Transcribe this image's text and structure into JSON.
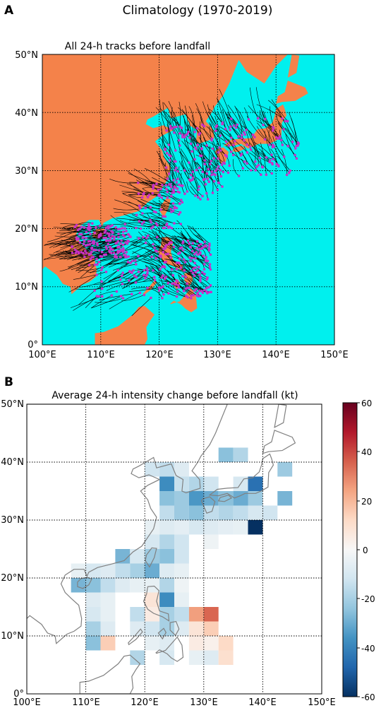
{
  "page": {
    "suptitle": "Climatology (1970-2019)"
  },
  "colors": {
    "land": "#f4824a",
    "sea": "#00f0ee",
    "track": "#000000",
    "landfall_point": "#c830c8",
    "coastline": "#808080",
    "cmap": [
      "#053061",
      "#2166ac",
      "#4393c3",
      "#92c5de",
      "#d1e5f0",
      "#f7f7f7",
      "#fddbc7",
      "#f4a582",
      "#d6604d",
      "#b2182b",
      "#67001f"
    ]
  },
  "chart_data": [
    {
      "panel_label": "A",
      "type": "scatter",
      "title": "All 24-h tracks before landfall",
      "xlabel": "",
      "ylabel": "",
      "xlim": [
        100,
        150
      ],
      "ylim": [
        0,
        50
      ],
      "x_ticks": [
        "100°E",
        "110°E",
        "120°E",
        "130°E",
        "140°E",
        "150°E"
      ],
      "y_ticks": [
        "0°",
        "10°N",
        "20°N",
        "30°N",
        "40°N",
        "50°N"
      ],
      "grid": true,
      "landfall_clusters": [
        {
          "lon_range": [
            105,
            115
          ],
          "lat_range": [
            15,
            21
          ],
          "count": 140,
          "dir": [
            -1.2,
            -0.2
          ]
        },
        {
          "lon_range": [
            108,
            120
          ],
          "lat_range": [
            8,
            19
          ],
          "count": 90,
          "dir": [
            -1.0,
            -0.4
          ]
        },
        {
          "lon_range": [
            116,
            124
          ],
          "lat_range": [
            20,
            28
          ],
          "count": 80,
          "dir": [
            -1.0,
            0.3
          ]
        },
        {
          "lon_range": [
            120,
            129
          ],
          "lat_range": [
            8,
            18
          ],
          "count": 150,
          "dir": [
            -0.9,
            0.6
          ]
        },
        {
          "lon_range": [
            121,
            131
          ],
          "lat_range": [
            25,
            38
          ],
          "count": 110,
          "dir": [
            -0.4,
            1.0
          ]
        },
        {
          "lon_range": [
            129,
            144
          ],
          "lat_range": [
            29,
            39
          ],
          "count": 110,
          "dir": [
            -0.6,
            0.9
          ]
        }
      ]
    },
    {
      "panel_label": "B",
      "type": "heatmap",
      "title": "Average 24-h intensity change before landfall (kt)",
      "xlabel": "",
      "ylabel": "",
      "xlim": [
        100,
        150
      ],
      "ylim": [
        0,
        50
      ],
      "x_ticks": [
        "100°E",
        "110°E",
        "120°E",
        "130°E",
        "140°E",
        "150°E"
      ],
      "y_ticks": [
        "0°",
        "10°N",
        "20°N",
        "30°N",
        "40°N",
        "50°N"
      ],
      "grid": true,
      "cell_size_deg": 2.5,
      "colorbar": {
        "vmin": -60,
        "vmax": 60,
        "ticks": [
          "60",
          "40",
          "20",
          "0",
          "-20",
          "-40",
          "-60"
        ]
      },
      "cells": [
        [
          132.5,
          40,
          -25
        ],
        [
          135,
          40,
          -18
        ],
        [
          142.5,
          37.5,
          -22
        ],
        [
          120,
          37.5,
          -12
        ],
        [
          122.5,
          37.5,
          -15
        ],
        [
          125,
          37.5,
          -8
        ],
        [
          122.5,
          35,
          -38
        ],
        [
          125,
          35,
          -14
        ],
        [
          127.5,
          35,
          -18
        ],
        [
          130,
          35,
          -12
        ],
        [
          135,
          35,
          -10
        ],
        [
          137.5,
          35,
          -45
        ],
        [
          122.5,
          32.5,
          -25
        ],
        [
          125,
          32.5,
          -22
        ],
        [
          127.5,
          32.5,
          -35
        ],
        [
          130,
          32.5,
          -30
        ],
        [
          132.5,
          32.5,
          -25
        ],
        [
          135,
          32.5,
          -30
        ],
        [
          137.5,
          32.5,
          -22
        ],
        [
          142.5,
          32.5,
          -28
        ],
        [
          122.5,
          30,
          -15
        ],
        [
          125,
          30,
          -22
        ],
        [
          127.5,
          30,
          -25
        ],
        [
          130,
          30,
          -15
        ],
        [
          132.5,
          30,
          -18
        ],
        [
          135,
          30,
          -15
        ],
        [
          137.5,
          30,
          -10
        ],
        [
          140,
          30,
          -12
        ],
        [
          120,
          27.5,
          -5
        ],
        [
          122.5,
          27.5,
          -8
        ],
        [
          125,
          27.5,
          -6
        ],
        [
          127.5,
          27.5,
          -10
        ],
        [
          130,
          27.5,
          -8
        ],
        [
          132.5,
          27.5,
          -6
        ],
        [
          135,
          27.5,
          -5
        ],
        [
          137.5,
          27.5,
          -60
        ],
        [
          120,
          25,
          -10
        ],
        [
          122.5,
          25,
          -18
        ],
        [
          125,
          25,
          -12
        ],
        [
          130,
          25,
          -3
        ],
        [
          115,
          22.5,
          -28
        ],
        [
          117.5,
          22.5,
          -10
        ],
        [
          120,
          22.5,
          -22
        ],
        [
          122.5,
          22.5,
          -25
        ],
        [
          125,
          22.5,
          -12
        ],
        [
          107.5,
          20,
          -5
        ],
        [
          110,
          20,
          -10
        ],
        [
          112.5,
          20,
          -8
        ],
        [
          115,
          20,
          -15
        ],
        [
          117.5,
          20,
          -20
        ],
        [
          120,
          20,
          -30
        ],
        [
          122.5,
          20,
          -8
        ],
        [
          125,
          20,
          -5
        ],
        [
          107.5,
          17.5,
          -28
        ],
        [
          110,
          17.5,
          -25
        ],
        [
          112.5,
          17.5,
          -15
        ],
        [
          115,
          17.5,
          -8
        ],
        [
          117.5,
          17.5,
          -5
        ],
        [
          120,
          17.5,
          -5
        ],
        [
          122.5,
          17.5,
          -18
        ],
        [
          125,
          17.5,
          -3
        ],
        [
          110,
          15,
          -8
        ],
        [
          112.5,
          15,
          -5
        ],
        [
          120,
          15,
          8
        ],
        [
          122.5,
          15,
          -38
        ],
        [
          125,
          15,
          -5
        ],
        [
          110,
          12.5,
          -10
        ],
        [
          112.5,
          12.5,
          -5
        ],
        [
          117.5,
          12.5,
          -15
        ],
        [
          120,
          12.5,
          5
        ],
        [
          122.5,
          12.5,
          -20
        ],
        [
          125,
          12.5,
          -15
        ],
        [
          127.5,
          12.5,
          25
        ],
        [
          130,
          12.5,
          35
        ],
        [
          110,
          10,
          -20
        ],
        [
          112.5,
          10,
          -8
        ],
        [
          117.5,
          10,
          -8
        ],
        [
          120,
          10,
          -12
        ],
        [
          122.5,
          10,
          -20
        ],
        [
          125,
          10,
          -8
        ],
        [
          127.5,
          10,
          8
        ],
        [
          130,
          10,
          15
        ],
        [
          112.5,
          7.5,
          15
        ],
        [
          110,
          7.5,
          -25
        ],
        [
          120,
          7.5,
          -5
        ],
        [
          122.5,
          7.5,
          -8
        ],
        [
          127.5,
          7.5,
          5
        ],
        [
          130,
          7.5,
          3
        ],
        [
          132.5,
          7.5,
          12
        ],
        [
          117.5,
          5,
          -18
        ],
        [
          122.5,
          5,
          -10
        ],
        [
          127.5,
          5,
          -5
        ],
        [
          130,
          5,
          -8
        ],
        [
          132.5,
          5,
          10
        ]
      ]
    }
  ]
}
